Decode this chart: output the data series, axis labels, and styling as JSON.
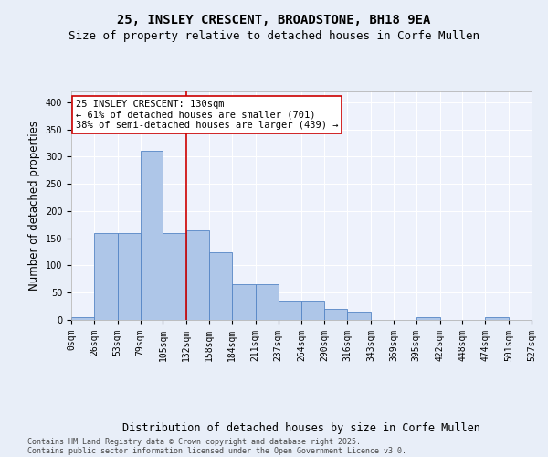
{
  "title_line1": "25, INSLEY CRESCENT, BROADSTONE, BH18 9EA",
  "title_line2": "Size of property relative to detached houses in Corfe Mullen",
  "xlabel": "Distribution of detached houses by size in Corfe Mullen",
  "ylabel": "Number of detached properties",
  "footer_line1": "Contains HM Land Registry data © Crown copyright and database right 2025.",
  "footer_line2": "Contains public sector information licensed under the Open Government Licence v3.0.",
  "annotation_line1": "25 INSLEY CRESCENT: 130sqm",
  "annotation_line2": "← 61% of detached houses are smaller (701)",
  "annotation_line3": "38% of semi-detached houses are larger (439) →",
  "bar_color": "#aec6e8",
  "bar_edge_color": "#5585c5",
  "ref_line_color": "#cc0000",
  "ref_line_x": 132,
  "bin_edges": [
    0,
    26,
    53,
    79,
    105,
    132,
    158,
    184,
    211,
    237,
    264,
    290,
    316,
    343,
    369,
    395,
    422,
    448,
    474,
    501,
    527
  ],
  "bar_heights": [
    5,
    160,
    160,
    310,
    160,
    165,
    125,
    65,
    65,
    35,
    35,
    20,
    15,
    0,
    0,
    5,
    0,
    0,
    5,
    0
  ],
  "ylim": [
    0,
    420
  ],
  "yticks": [
    0,
    50,
    100,
    150,
    200,
    250,
    300,
    350,
    400
  ],
  "bg_color": "#e8eef8",
  "plot_bg_color": "#eef2fc",
  "grid_color": "#ffffff",
  "title_fontsize": 10,
  "subtitle_fontsize": 9,
  "tick_fontsize": 7,
  "label_fontsize": 8.5,
  "footer_fontsize": 6,
  "annotation_fontsize": 7.5
}
